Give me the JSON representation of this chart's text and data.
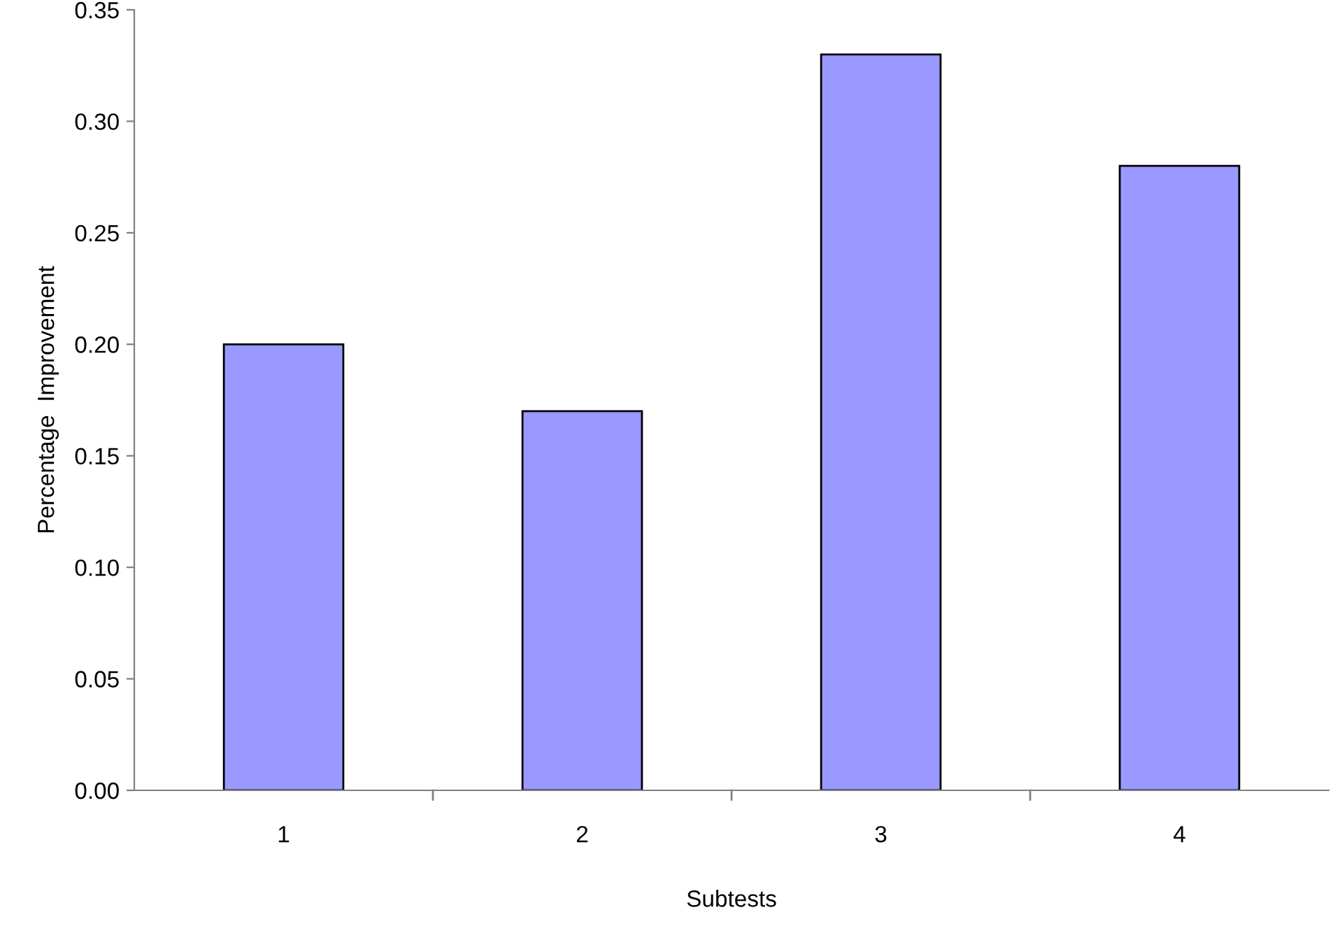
{
  "chart_data": {
    "type": "bar",
    "xlabel": "Subtests",
    "ylabel": "Percentage  Improvement",
    "categories": [
      "1",
      "2",
      "3",
      "4"
    ],
    "values": [
      0.2,
      0.17,
      0.33,
      0.28
    ],
    "color": "#9999ff",
    "ylim": [
      0,
      0.35
    ],
    "yticks": [
      {
        "value": 0,
        "label": "0.00"
      },
      {
        "value": 0.05,
        "label": "0.05"
      },
      {
        "value": 0.1,
        "label": "0.10"
      },
      {
        "value": 0.15,
        "label": "0.15"
      },
      {
        "value": 0.2,
        "label": "0.20"
      },
      {
        "value": 0.25,
        "label": "0.25"
      },
      {
        "value": 0.3,
        "label": "0.30"
      },
      {
        "value": 0.35,
        "label": "0.35"
      }
    ],
    "grid": false,
    "legend": false
  }
}
